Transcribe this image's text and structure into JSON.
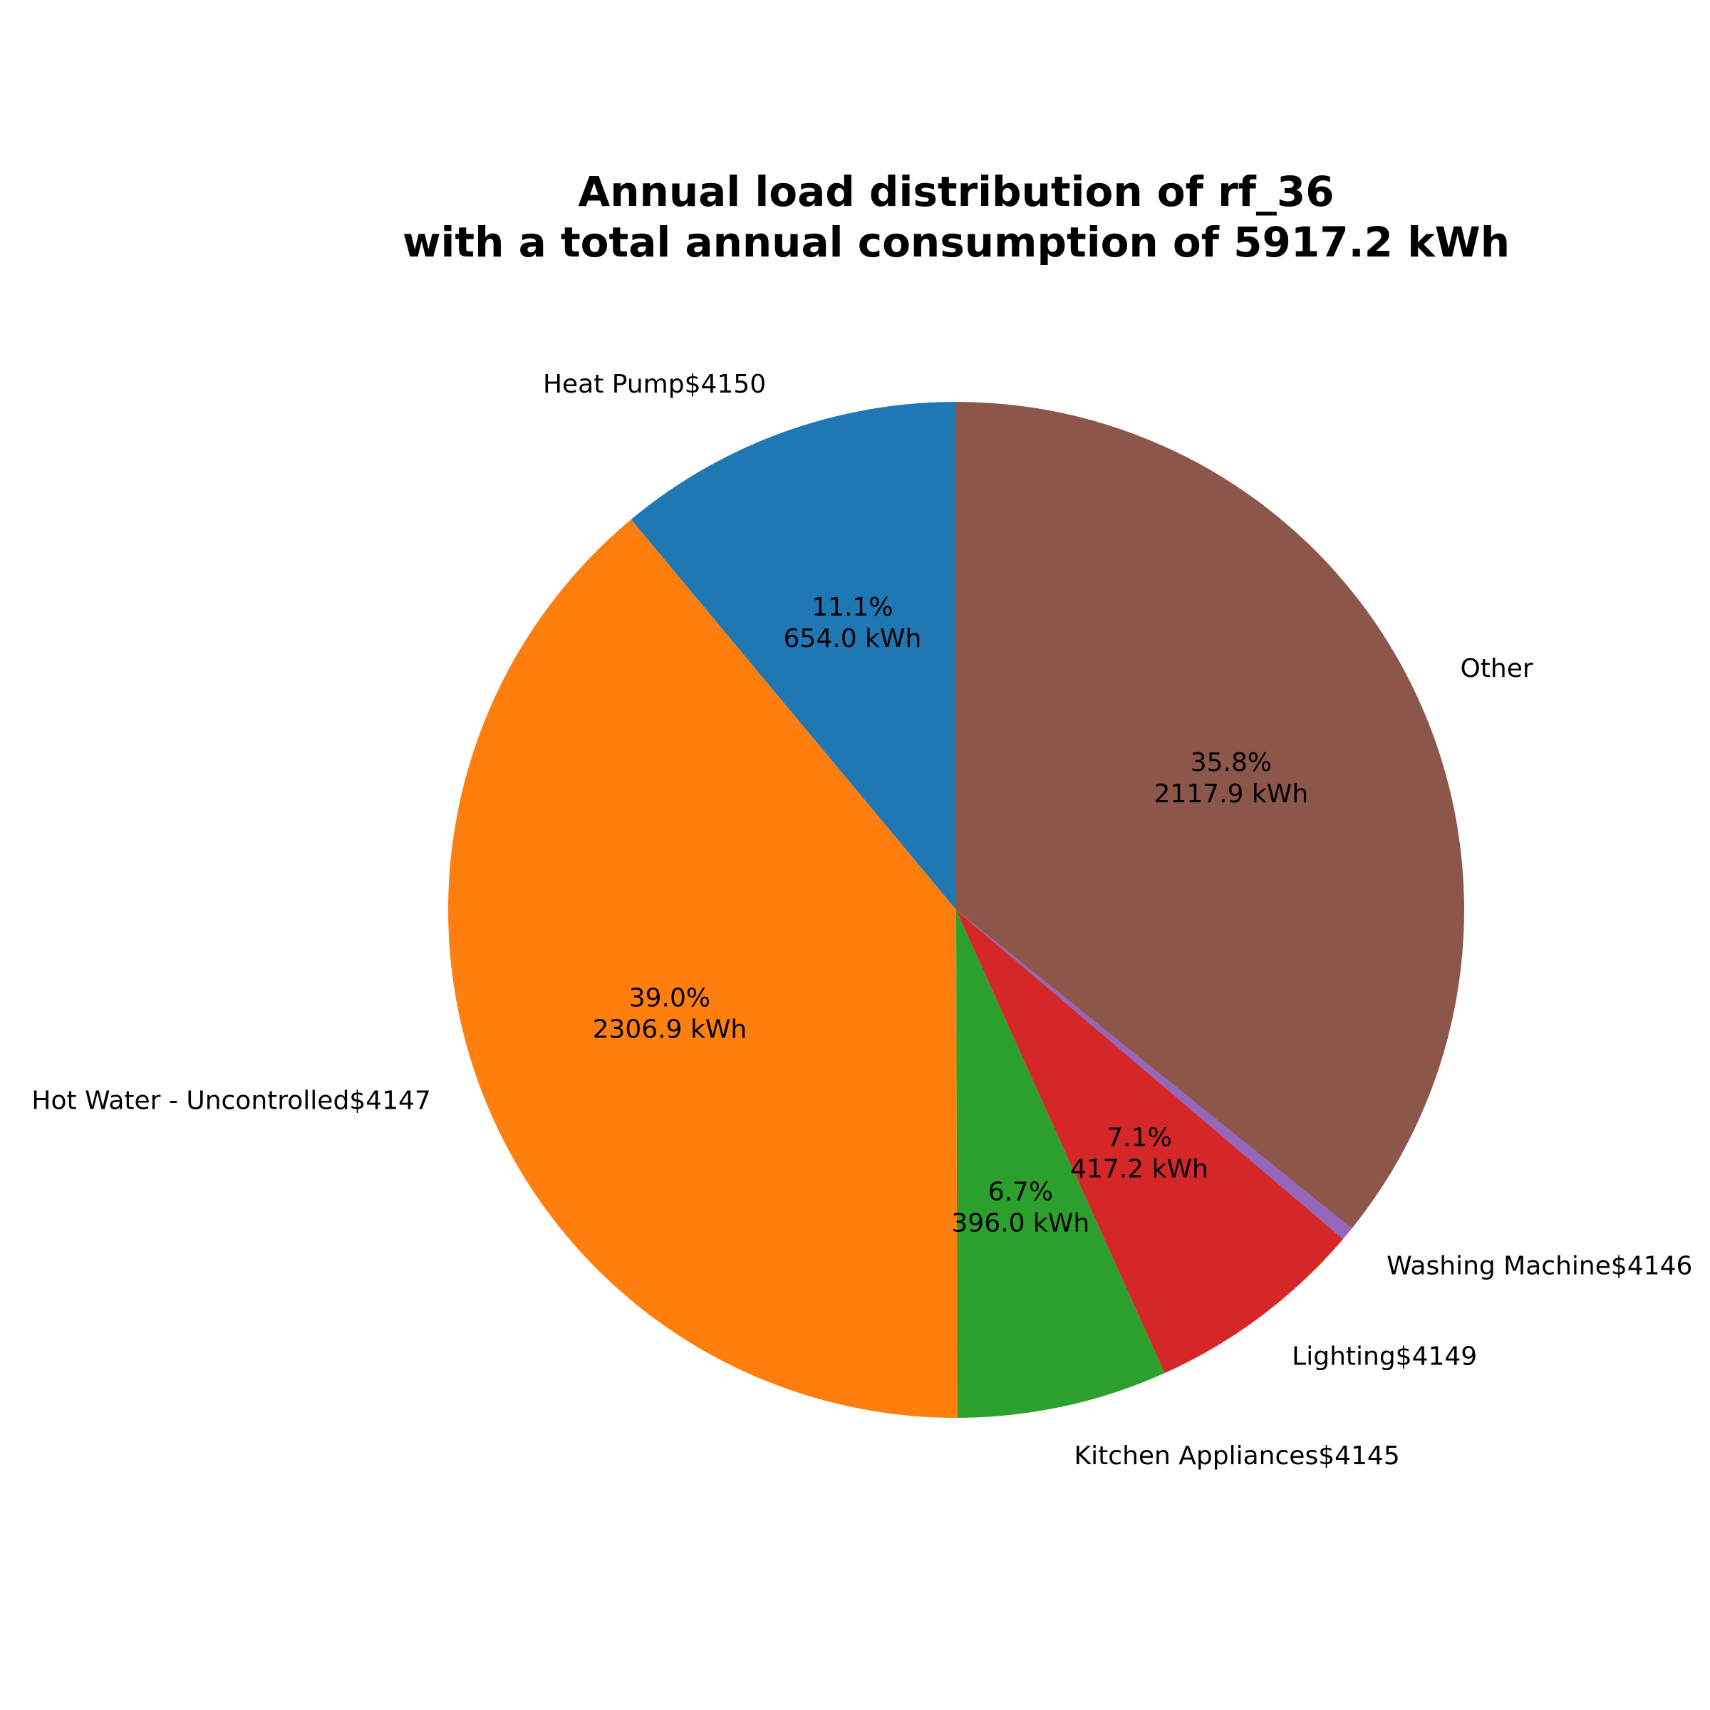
{
  "chart_data": {
    "type": "pie",
    "title_lines": [
      "Annual load distribution of rf_36",
      "with a total annual consumption of 5917.2 kWh"
    ],
    "start_angle_deg": 90,
    "direction": "counterclockwise",
    "slices": [
      {
        "label": "Heat Pump$4150",
        "value": 654.0,
        "pct_label": "11.1%",
        "value_label": "654.0 kWh",
        "color": "#1f77b4"
      },
      {
        "label": "Hot Water - Uncontrolled$4147",
        "value": 2306.9,
        "pct_label": "39.0%",
        "value_label": "2306.9 kWh",
        "color": "#ff7f0e"
      },
      {
        "label": "Kitchen Appliances$4145",
        "value": 396.0,
        "pct_label": "6.7%",
        "value_label": "396.0 kWh",
        "color": "#2ca02c"
      },
      {
        "label": "Lighting$4149",
        "value": 417.2,
        "pct_label": "7.1%",
        "value_label": "417.2 kWh",
        "color": "#d62728"
      },
      {
        "label": "Washing Machine$4146",
        "value": 25.2,
        "pct_label": "",
        "value_label": "",
        "color": "#9467bd"
      },
      {
        "label": "Other",
        "value": 2117.9,
        "pct_label": "35.8%",
        "value_label": "2117.9 kWh",
        "color": "#8c564b"
      }
    ]
  }
}
